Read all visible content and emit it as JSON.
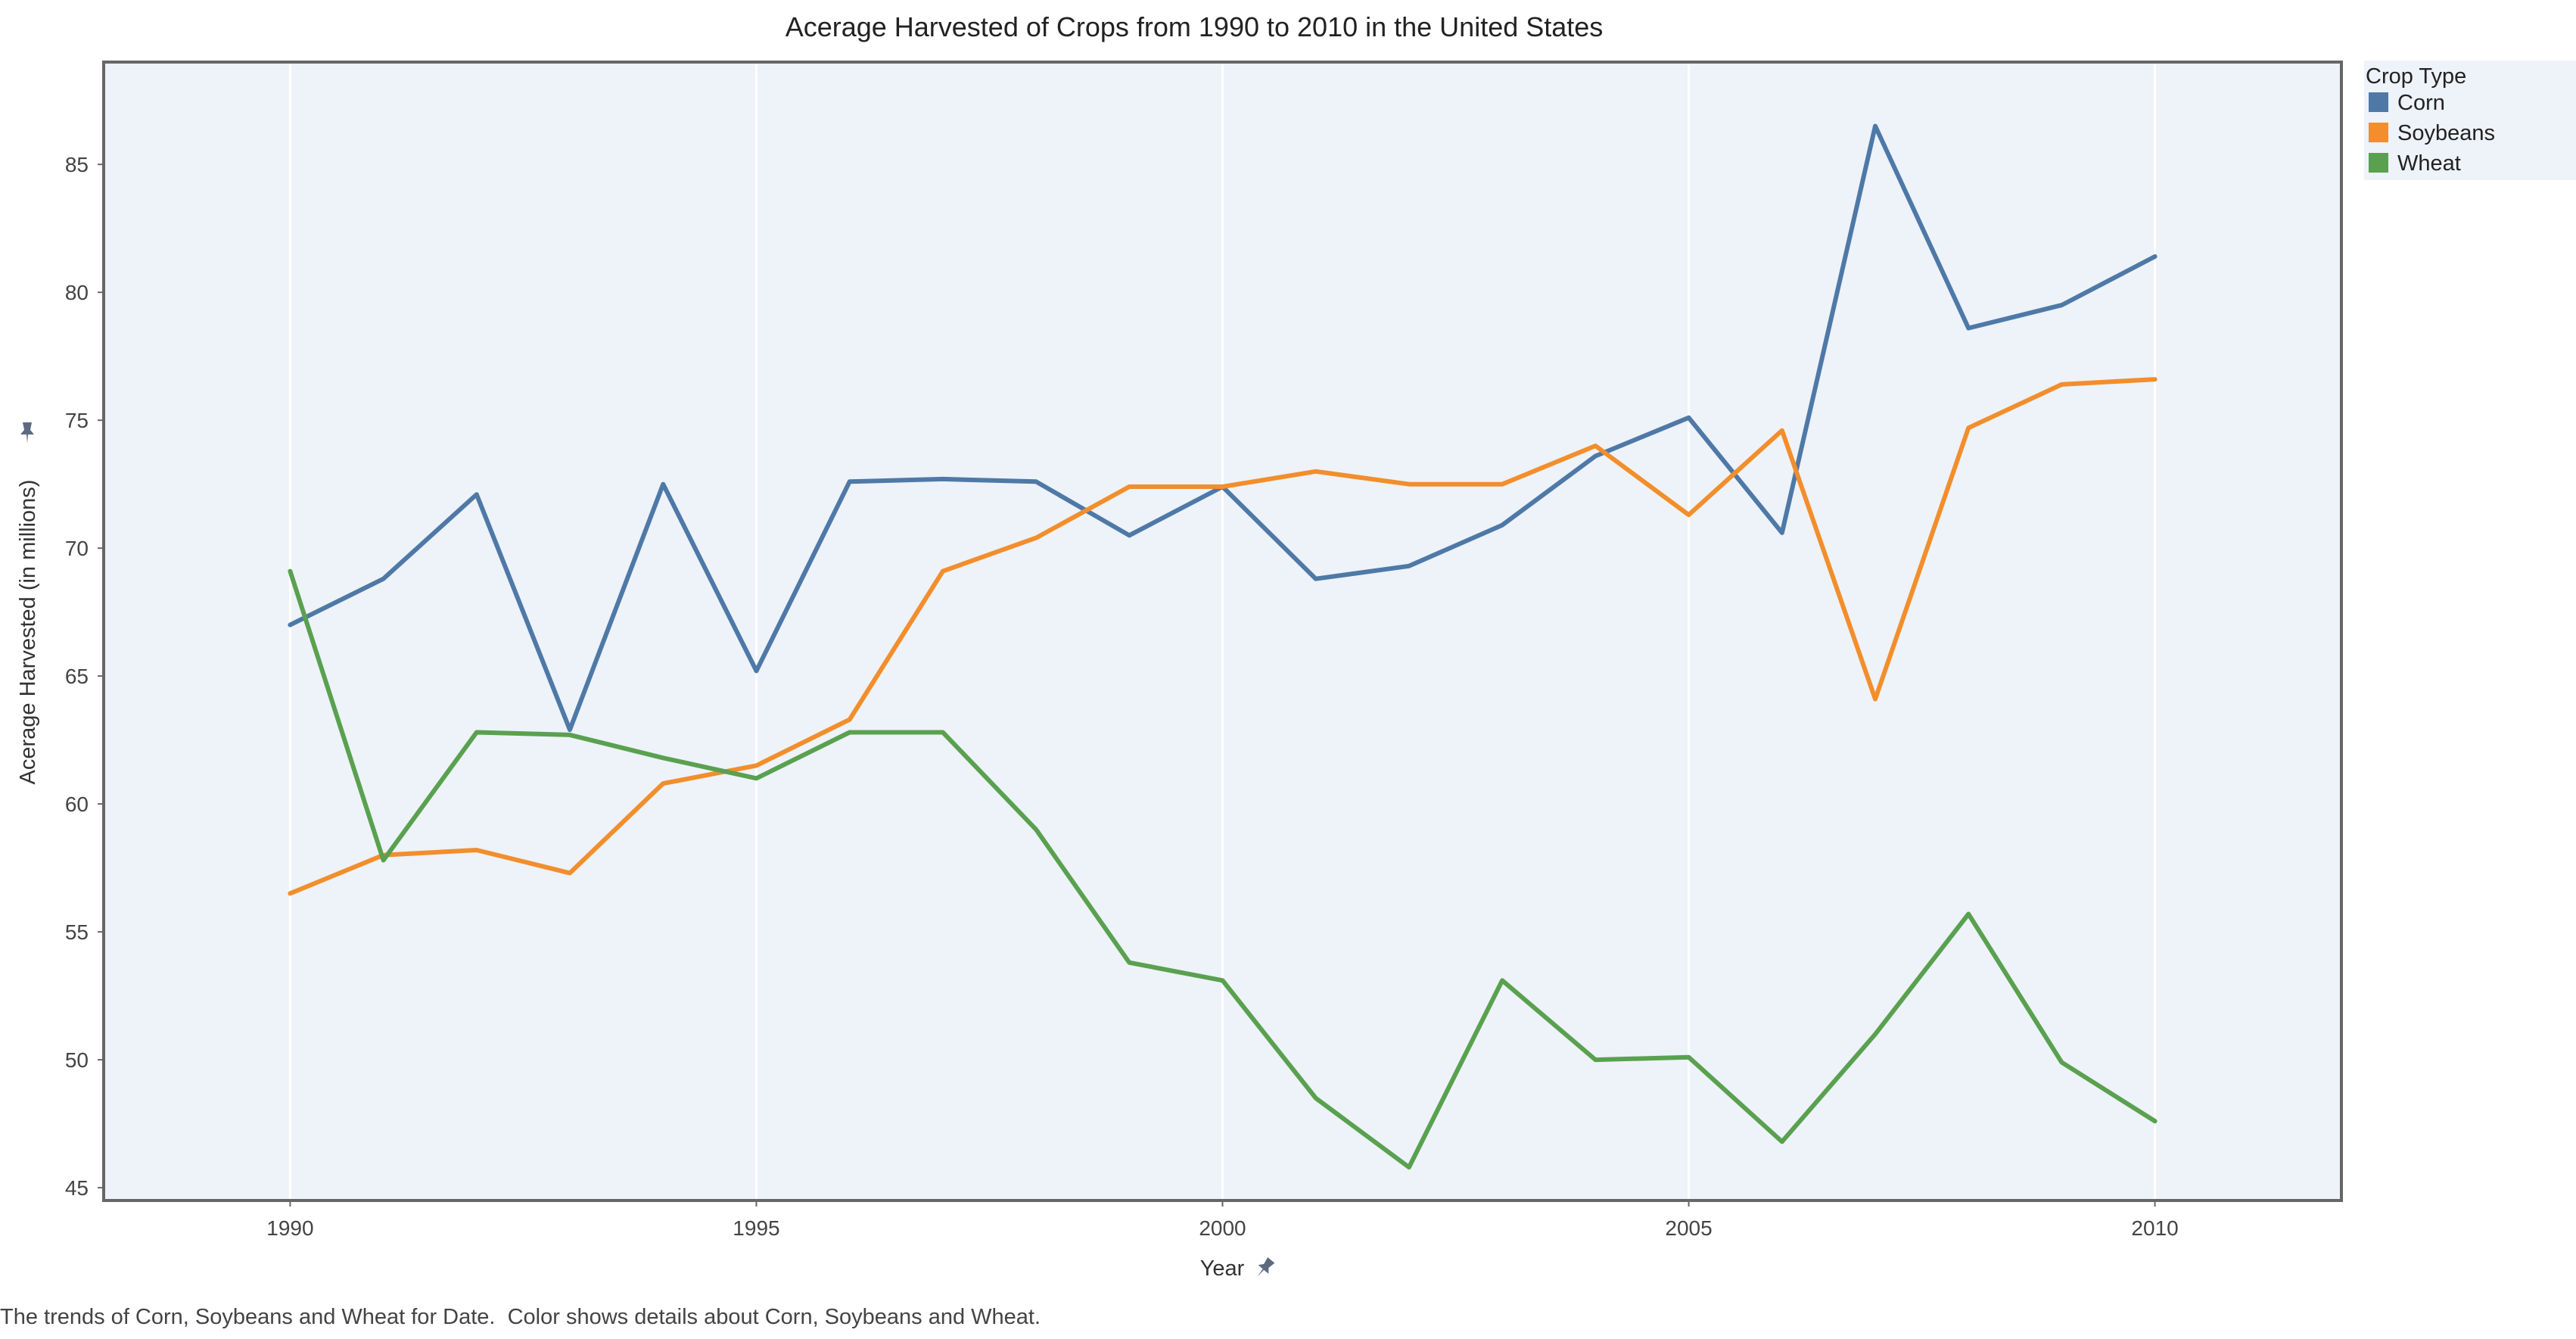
{
  "chart_data": {
    "type": "line",
    "title": "Acerage Harvested of Crops from 1990 to 2010 in the United States",
    "xlabel": "Year",
    "ylabel": "Acerage Harvested (in millions)",
    "caption": "The trends of Corn, Soybeans and Wheat for Date.  Color shows details about Corn, Soybeans and Wheat.",
    "x": [
      1990,
      1991,
      1992,
      1993,
      1994,
      1995,
      1996,
      1997,
      1998,
      1999,
      2000,
      2001,
      2002,
      2003,
      2004,
      2005,
      2006,
      2007,
      2008,
      2009,
      2010
    ],
    "xlim": [
      1988,
      2012
    ],
    "ylim": [
      44.5,
      89
    ],
    "xticks": [
      1990,
      1995,
      2000,
      2005,
      2010
    ],
    "yticks": [
      45,
      50,
      55,
      60,
      65,
      70,
      75,
      80,
      85
    ],
    "grid": "vertical",
    "legend": {
      "title": "Crop Type",
      "placement": "top-right outside"
    },
    "series": [
      {
        "name": "Corn",
        "color": "#4e79a7",
        "values": [
          67.0,
          68.8,
          72.1,
          62.9,
          72.5,
          65.2,
          72.6,
          72.7,
          72.6,
          70.5,
          72.4,
          68.8,
          69.3,
          70.9,
          73.6,
          75.1,
          70.6,
          86.5,
          78.6,
          79.5,
          81.4
        ]
      },
      {
        "name": "Soybeans",
        "color": "#f28e2b",
        "values": [
          56.5,
          58.0,
          58.2,
          57.3,
          60.8,
          61.5,
          63.3,
          69.1,
          70.4,
          72.4,
          72.4,
          73.0,
          72.5,
          72.5,
          74.0,
          71.3,
          74.6,
          64.1,
          74.7,
          76.4,
          76.6
        ]
      },
      {
        "name": "Wheat",
        "color": "#59a14f",
        "values": [
          69.1,
          57.8,
          62.8,
          62.7,
          61.8,
          61.0,
          62.8,
          62.8,
          59.0,
          53.8,
          53.1,
          48.5,
          45.8,
          53.1,
          50.0,
          50.1,
          46.8,
          51.0,
          55.7,
          49.9,
          47.6
        ]
      }
    ]
  }
}
